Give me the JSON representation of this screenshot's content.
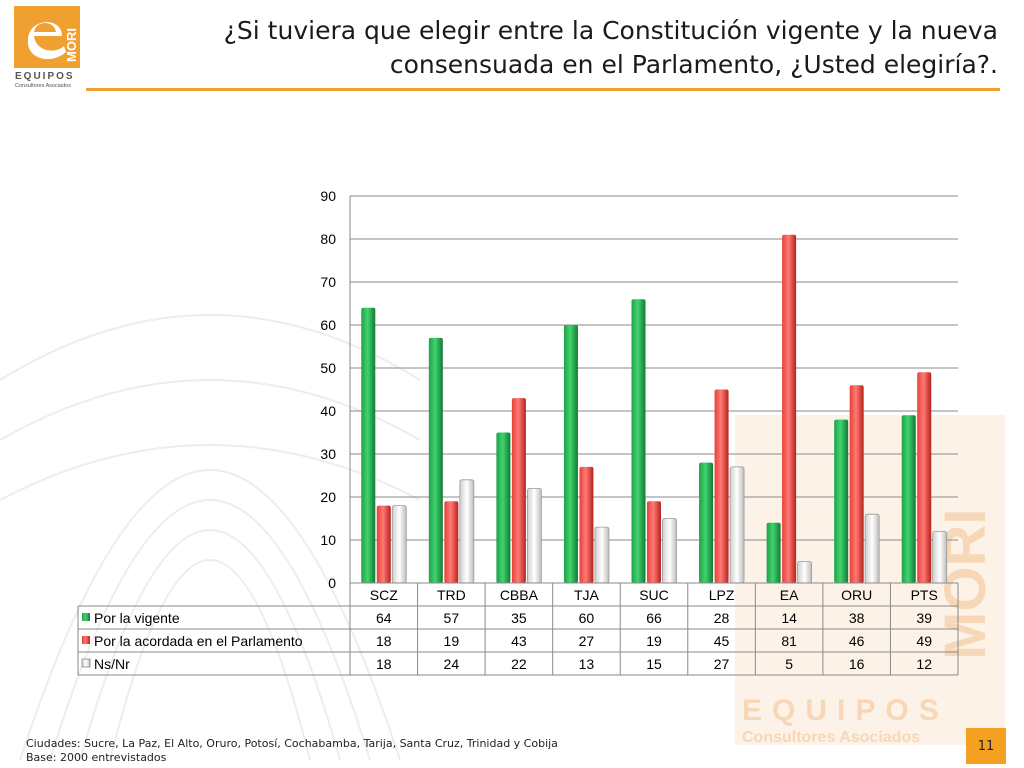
{
  "header": {
    "title_line1": "¿Si tuviera que elegir entre la Constitución vigente y la nueva",
    "title_line2": "consensuada en el Parlamento, ¿Usted elegiría?.",
    "logo_text_main": "MORI",
    "logo_text_sub": "EQUIPOS",
    "logo_text_small": "Consultores Asociados"
  },
  "watermark": {
    "text_main": "MORI",
    "text_sub": "EQUIPOS",
    "text_small": "Consultores Asociados"
  },
  "colors": {
    "accent": "#f0a030",
    "green": "#22a04a",
    "red": "#e8403a",
    "white_bar": "#f4f4f4"
  },
  "chart_data": {
    "type": "bar",
    "categories": [
      "SCZ",
      "TRD",
      "CBBA",
      "TJA",
      "SUC",
      "LPZ",
      "EA",
      "ORU",
      "PTS"
    ],
    "series": [
      {
        "name": "Por la vigente",
        "values": [
          64,
          57,
          35,
          60,
          66,
          28,
          14,
          38,
          39
        ],
        "color": "#22a04a"
      },
      {
        "name": "Por la acordada en el Parlamento",
        "values": [
          18,
          19,
          43,
          27,
          19,
          45,
          81,
          46,
          49
        ],
        "color": "#e8403a"
      },
      {
        "name": "Ns/Nr",
        "values": [
          18,
          24,
          22,
          13,
          15,
          27,
          5,
          16,
          12
        ],
        "color": "#f4f4f4"
      }
    ],
    "yticks": [
      0,
      10,
      20,
      30,
      40,
      50,
      60,
      70,
      80,
      90
    ],
    "ylim": [
      0,
      90
    ],
    "grid": true,
    "legend": "data-table"
  },
  "footer": {
    "note_line1": "Ciudades: Sucre, La Paz, El Alto, Oruro, Potosí, Cochabamba, Tarija, Santa Cruz, Trinidad y Cobija",
    "note_line2": "Base: 2000 entrevistados",
    "page_number": "11"
  }
}
